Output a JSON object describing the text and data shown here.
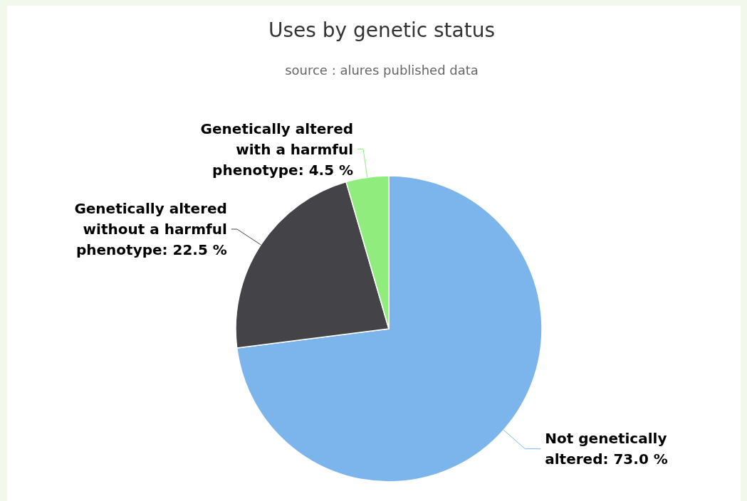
{
  "chart_data": {
    "type": "pie",
    "title": "Uses by genetic status",
    "annotations": [
      "source : alures published data"
    ],
    "categories": [
      "Not genetically altered",
      "Genetically altered without a harmful phenotype",
      "Genetically altered with a harmful phenotype"
    ],
    "values": [
      73.0,
      22.5,
      4.5
    ],
    "value_labels": [
      "73.0 %",
      "22.5 %",
      "4.5 %"
    ],
    "colors": [
      "#7cb5ec",
      "#434348",
      "#90ed7d"
    ]
  }
}
